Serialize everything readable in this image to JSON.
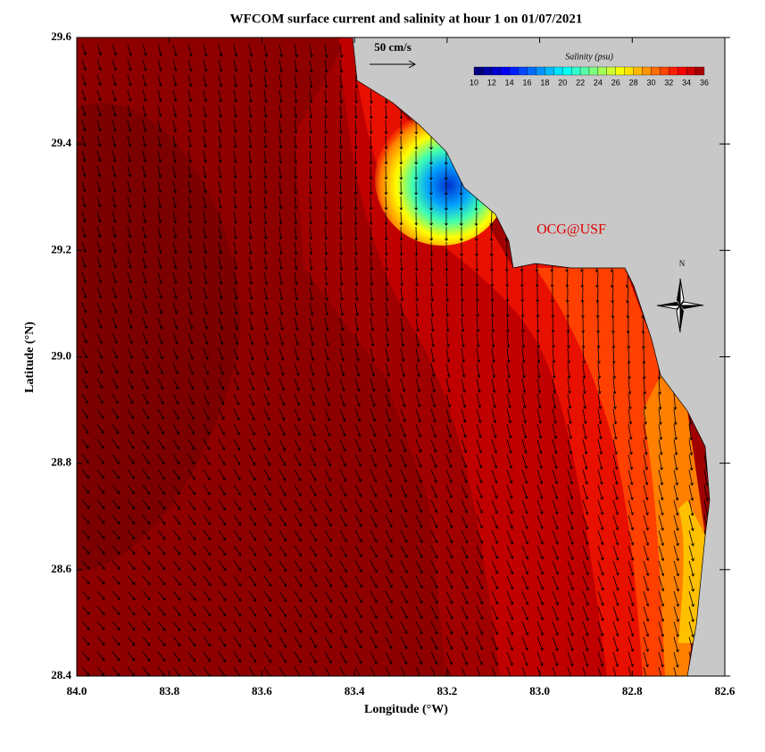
{
  "chart_data": {
    "type": "map",
    "title": "WFCOM surface current and salinity at hour 1 on 01/07/2021",
    "xlabel": "Longitude (°W)",
    "ylabel": "Latitude (°N)",
    "xlim": [
      84,
      82.6
    ],
    "ylim": [
      28.4,
      29.6
    ],
    "xticks": [
      {
        "value": 84,
        "label": "84.0"
      },
      83.8,
      83.6,
      83.4,
      83.2,
      {
        "value": 83,
        "label": "83.0"
      },
      82.8,
      82.6
    ],
    "yticks": [
      28.4,
      28.6,
      28.8,
      {
        "value": 29,
        "label": "29.0"
      },
      29.2,
      29.4,
      29.6
    ],
    "colorbar": {
      "title": "Salinity (psu)",
      "lim": [
        10,
        36
      ],
      "ticks": [
        10,
        12,
        14,
        16,
        18,
        20,
        22,
        24,
        26,
        28,
        30,
        32,
        34,
        36
      ]
    },
    "scale_label": "50 cm/s",
    "watermark": "OCG@USF",
    "north_label": "N"
  }
}
